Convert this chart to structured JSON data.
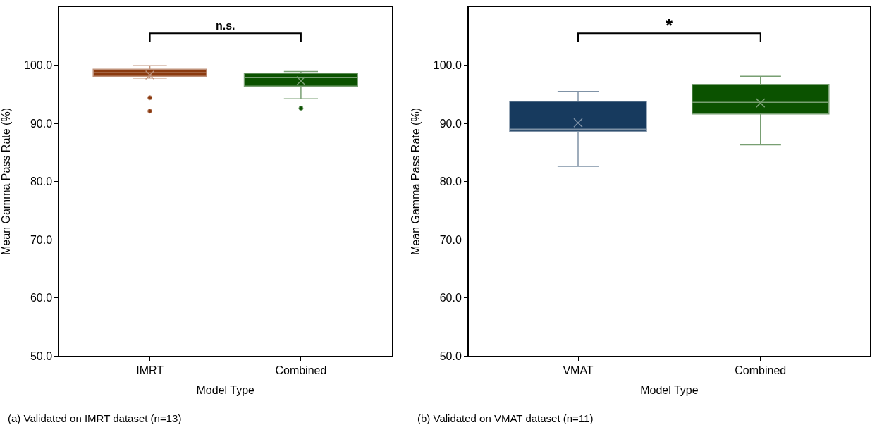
{
  "chart_data": [
    {
      "type": "box",
      "xlabel": "Model Type",
      "ylabel": "Mean Gamma Pass Rate (%)",
      "categories": [
        "IMRT",
        "Combined"
      ],
      "colors": [
        "#8b3a0f",
        "#0b5200"
      ],
      "boxes": [
        {
          "low": 97.8,
          "q1": 98.1,
          "median": 98.7,
          "q3": 99.3,
          "high": 99.9,
          "mean": 98.3,
          "outliers": [
            94.4,
            92.1
          ]
        },
        {
          "low": 94.2,
          "q1": 96.4,
          "median": 97.9,
          "q3": 98.6,
          "high": 98.9,
          "mean": 97.3,
          "outliers": [
            92.6
          ]
        }
      ],
      "ylim": [
        50,
        110
      ],
      "yticks": [
        {
          "value": 50,
          "label": "50.0"
        },
        {
          "value": 60,
          "label": "60.0"
        },
        {
          "value": 70,
          "label": "70.0"
        },
        {
          "value": 80,
          "label": "80.0"
        },
        {
          "value": 90,
          "label": "90.0"
        },
        {
          "value": 100,
          "label": "100.0"
        }
      ],
      "annotations": [
        "n.s.",
        "(a) Validated on IMRT dataset (n=13)"
      ]
    },
    {
      "type": "box",
      "xlabel": "Model Type",
      "ylabel": "Mean Gamma Pass Rate (%)",
      "categories": [
        "VMAT",
        "Combined"
      ],
      "colors": [
        "#173a5e",
        "#0b5200"
      ],
      "boxes": [
        {
          "low": 82.6,
          "q1": 88.6,
          "median": 89.0,
          "q3": 93.8,
          "high": 95.5,
          "mean": 90.1
        },
        {
          "low": 86.3,
          "q1": 91.6,
          "median": 93.6,
          "q3": 96.7,
          "high": 98.1,
          "mean": 93.5
        }
      ],
      "ylim": [
        50,
        110
      ],
      "yticks": [
        {
          "value": 50,
          "label": "50.0"
        },
        {
          "value": 60,
          "label": "60.0"
        },
        {
          "value": 70,
          "label": "70.0"
        },
        {
          "value": 80,
          "label": "80.0"
        },
        {
          "value": 90,
          "label": "90.0"
        },
        {
          "value": 100,
          "label": "100.0"
        }
      ],
      "annotations": [
        "*",
        "(b) Validated on VMAT dataset (n=11)"
      ]
    }
  ]
}
